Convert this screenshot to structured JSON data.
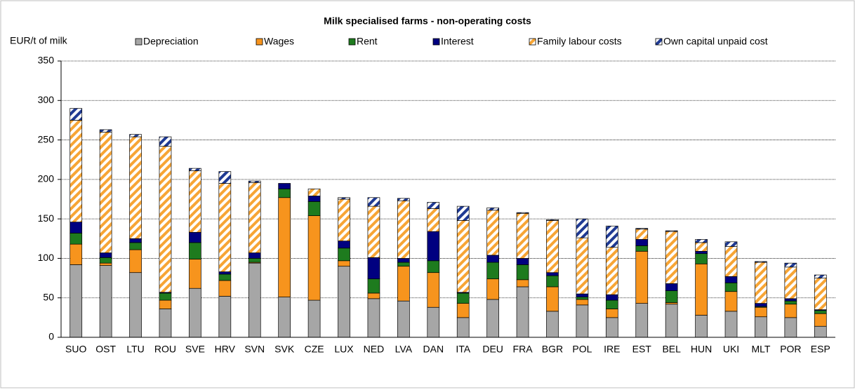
{
  "chart_data": {
    "type": "stacked_bar",
    "title": "Milk specialised  farms - non-operating costs",
    "y_label": "EUR/t of milk",
    "categories": [
      "SUO",
      "OST",
      "LTU",
      "ROU",
      "SVE",
      "HRV",
      "SVN",
      "SVK",
      "CZE",
      "LUX",
      "NED",
      "LVA",
      "DAN",
      "ITA",
      "DEU",
      "FRA",
      "BGR",
      "POL",
      "IRE",
      "EST",
      "BEL",
      "HUN",
      "UKI",
      "MLT",
      "POR",
      "ESP"
    ],
    "series": [
      {
        "name": "Depreciation",
        "color": "#a6a6a6",
        "hatched": false,
        "values": [
          92,
          91,
          82,
          36,
          62,
          52,
          94,
          51,
          47,
          90,
          49,
          46,
          38,
          25,
          48,
          64,
          33,
          41,
          25,
          43,
          42,
          28,
          33,
          26,
          25,
          14
        ]
      },
      {
        "name": "Wages",
        "color": "#f7941d",
        "hatched": false,
        "values": [
          26,
          3,
          29,
          11,
          37,
          20,
          1,
          126,
          107,
          7,
          7,
          44,
          44,
          18,
          26,
          9,
          31,
          7,
          11,
          66,
          2,
          65,
          25,
          12,
          17,
          16
        ]
      },
      {
        "name": "Rent",
        "color": "#1e7b1e",
        "hatched": false,
        "values": [
          14,
          7,
          9,
          9,
          21,
          8,
          5,
          11,
          18,
          16,
          18,
          5,
          15,
          13,
          21,
          19,
          14,
          3,
          11,
          7,
          15,
          13,
          11,
          1,
          4,
          4
        ]
      },
      {
        "name": "Interest",
        "color": "#000080",
        "hatched": false,
        "values": [
          14,
          6,
          5,
          1,
          13,
          3,
          7,
          7,
          7,
          9,
          27,
          5,
          37,
          1,
          9,
          8,
          4,
          4,
          7,
          8,
          9,
          3,
          8,
          4,
          3,
          1
        ]
      },
      {
        "name": "Family labour costs",
        "color": "#f7a535",
        "hatched": true,
        "values": [
          129,
          153,
          129,
          185,
          78,
          112,
          89,
          0,
          9,
          53,
          65,
          73,
          29,
          91,
          57,
          57,
          66,
          71,
          60,
          13,
          66,
          11,
          38,
          52,
          40,
          40
        ]
      },
      {
        "name": "Own capital unpaid cost",
        "color": "#1f3a93",
        "hatched": true,
        "values": [
          15,
          3,
          3,
          12,
          3,
          15,
          2,
          0,
          0,
          2,
          11,
          3,
          8,
          18,
          3,
          1,
          1,
          24,
          27,
          1,
          1,
          4,
          6,
          1,
          5,
          4
        ]
      }
    ],
    "ylim": [
      0,
      350
    ],
    "yticks": [
      0,
      50,
      100,
      150,
      200,
      250,
      300,
      350
    ],
    "grid": true
  }
}
